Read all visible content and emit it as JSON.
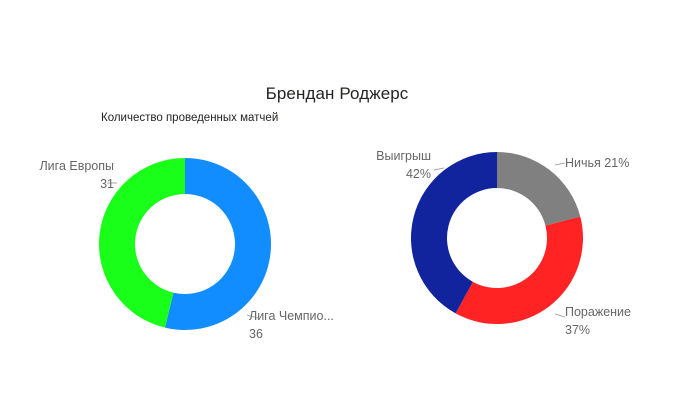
{
  "title": "Брендан Роджерс",
  "subtitle": "Количество проведенных матчей",
  "chart_data": [
    {
      "type": "pie",
      "donut": true,
      "slices": [
        {
          "name": "Лига Чемпио...",
          "value": 36,
          "value_text": "36",
          "color": "#118DFF"
        },
        {
          "name": "Лига Европы",
          "value": 31,
          "value_text": "31",
          "color": "#1AFF1A"
        }
      ]
    },
    {
      "type": "pie",
      "donut": true,
      "slices": [
        {
          "name": "Ничья",
          "value": 21,
          "value_text": "21%",
          "color": "#808080"
        },
        {
          "name": "Поражение",
          "value": 37,
          "value_text": "37%",
          "color": "#FF2323"
        },
        {
          "name": "Выигрыш",
          "value": 42,
          "value_text": "42%",
          "color": "#12239E"
        }
      ]
    }
  ]
}
